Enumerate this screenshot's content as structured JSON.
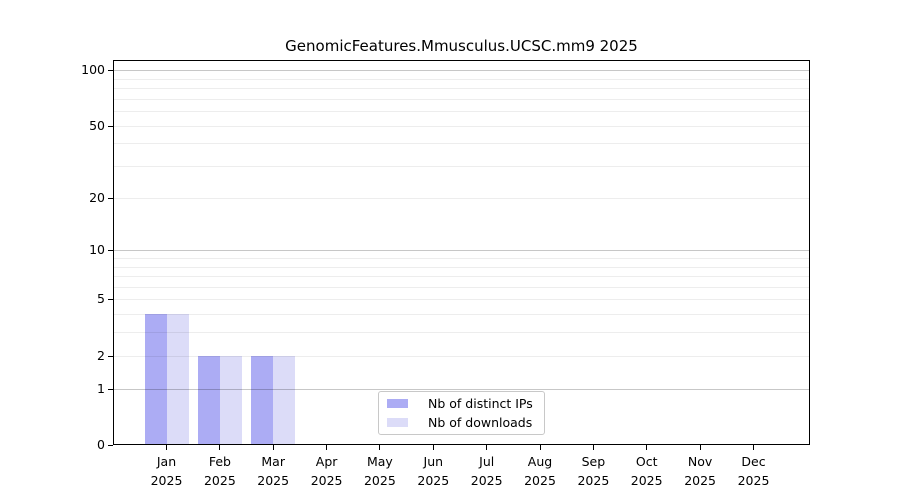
{
  "chart_data": {
    "type": "bar",
    "title": "GenomicFeatures.Mmusculus.UCSC.mm9 2025",
    "x_tick_months": [
      "Jan",
      "Feb",
      "Mar",
      "Apr",
      "May",
      "Jun",
      "Jul",
      "Aug",
      "Sep",
      "Oct",
      "Nov",
      "Dec"
    ],
    "x_tick_year": "2025",
    "series": [
      {
        "name": "Nb of distinct IPs",
        "color": "#acacf4",
        "values": [
          4,
          2,
          2,
          0,
          0,
          0,
          0,
          0,
          0,
          0,
          0,
          0
        ]
      },
      {
        "name": "Nb of downloads",
        "color": "#dcdcf8",
        "values": [
          4,
          2,
          2,
          0,
          0,
          0,
          0,
          0,
          0,
          0,
          0,
          0
        ]
      }
    ],
    "y_ticks": [
      0,
      1,
      2,
      5,
      10,
      20,
      50,
      100
    ],
    "y_major_gridlines": [
      1,
      10,
      100
    ],
    "y_minor_gridlines": [
      2,
      3,
      4,
      5,
      6,
      7,
      8,
      9,
      20,
      30,
      40,
      50,
      60,
      70,
      80,
      90
    ],
    "y_scale": "log10(1+y)",
    "ylim": [
      0,
      101
    ],
    "grid": "on",
    "grid_above_bars": true,
    "legend_position": "lower center (inside axes)",
    "colors": {
      "axis": "#000000",
      "major_grid": "#c9c9c9",
      "minor_grid": "#ededed",
      "background": "#ffffff"
    }
  }
}
